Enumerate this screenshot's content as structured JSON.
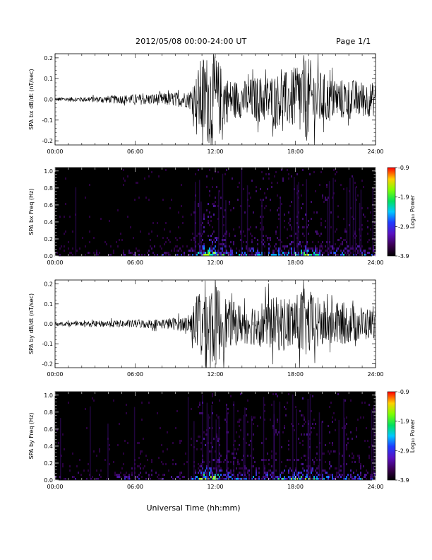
{
  "header": {
    "title": "2012/05/08  00:00-24:00 UT",
    "page": "Page 1/1"
  },
  "chart_data": [
    {
      "type": "line",
      "panel": "bx-waveform",
      "ylabel": "SPA bx dB/dt (nT/sec)",
      "x_ticks": [
        "00:00",
        "06:00",
        "12:00",
        "18:00",
        "24:00"
      ],
      "y_ticks": [
        "-0.2",
        "-0.1",
        "0.0",
        "0.1",
        "0.2"
      ],
      "ylim": [
        -0.22,
        0.22
      ],
      "xlim_hours": [
        0,
        24
      ],
      "series": [
        {
          "x_hours": [
            0,
            2,
            4,
            6,
            8,
            10,
            10.5,
            11,
            11.5,
            12,
            13,
            14,
            15,
            16,
            17,
            18,
            18.5,
            19,
            20,
            21,
            22,
            23,
            24
          ],
          "envelope": [
            0.01,
            0.012,
            0.018,
            0.025,
            0.03,
            0.04,
            0.1,
            0.22,
            0.22,
            0.22,
            0.1,
            0.09,
            0.11,
            0.12,
            0.13,
            0.15,
            0.22,
            0.2,
            0.13,
            0.1,
            0.1,
            0.09,
            0.08
          ]
        }
      ]
    },
    {
      "type": "heatmap",
      "panel": "bx-spectrogram",
      "ylabel": "SPA bx Freq (Hz)",
      "x_ticks": [
        "00:00",
        "06:00",
        "12:00",
        "18:00",
        "24:00"
      ],
      "y_ticks": [
        "0.0",
        "0.2",
        "0.4",
        "0.6",
        "0.8",
        "1.0"
      ],
      "ylim": [
        0,
        1.04
      ],
      "xlim_hours": [
        0,
        24
      ],
      "colorbar": {
        "label": "Log₁₀ Power",
        "ticks": [
          "-0.9",
          "-1.9",
          "-2.9",
          "-3.9"
        ],
        "range": [
          -3.9,
          -0.9
        ]
      },
      "activity_hours": [
        0,
        2,
        4,
        6,
        8,
        10,
        10.5,
        11,
        11.5,
        12,
        13,
        14,
        15,
        16,
        17,
        18,
        18.5,
        19,
        20,
        21,
        22,
        23,
        24
      ],
      "activity_level": [
        0.12,
        0.15,
        0.18,
        0.22,
        0.25,
        0.3,
        0.5,
        0.9,
        1.0,
        0.95,
        0.55,
        0.5,
        0.55,
        0.6,
        0.62,
        0.7,
        0.85,
        0.8,
        0.6,
        0.5,
        0.5,
        0.45,
        0.4
      ]
    },
    {
      "type": "line",
      "panel": "by-waveform",
      "ylabel": "SPA by dB/dt (nT/sec)",
      "x_ticks": [
        "00:00",
        "06:00",
        "12:00",
        "18:00",
        "24:00"
      ],
      "y_ticks": [
        "-0.2",
        "-0.1",
        "0.0",
        "0.1",
        "0.2"
      ],
      "ylim": [
        -0.22,
        0.22
      ],
      "xlim_hours": [
        0,
        24
      ],
      "series": [
        {
          "x_hours": [
            0,
            2,
            4,
            6,
            8,
            10,
            10.5,
            11,
            11.5,
            12,
            13,
            14,
            15,
            16,
            17,
            18,
            18.5,
            19,
            20,
            21,
            22,
            23,
            24
          ],
          "envelope": [
            0.01,
            0.012,
            0.018,
            0.02,
            0.025,
            0.04,
            0.12,
            0.22,
            0.22,
            0.22,
            0.12,
            0.1,
            0.11,
            0.13,
            0.14,
            0.14,
            0.18,
            0.17,
            0.12,
            0.11,
            0.1,
            0.09,
            0.07
          ]
        }
      ]
    },
    {
      "type": "heatmap",
      "panel": "by-spectrogram",
      "ylabel": "SPA by Freq (Hz)",
      "x_ticks": [
        "00:00",
        "06:00",
        "12:00",
        "18:00",
        "24:00"
      ],
      "y_ticks": [
        "0.0",
        "0.2",
        "0.4",
        "0.6",
        "0.8",
        "1.0"
      ],
      "ylim": [
        0,
        1.04
      ],
      "xlim_hours": [
        0,
        24
      ],
      "xlabel": "Universal Time (hh:mm)",
      "colorbar": {
        "label": "Log₁₀ Power",
        "ticks": [
          "-0.9",
          "-1.9",
          "-2.9",
          "-3.9"
        ],
        "range": [
          -3.9,
          -0.9
        ]
      },
      "activity_hours": [
        0,
        2,
        4,
        6,
        8,
        10,
        10.5,
        11,
        11.5,
        12,
        13,
        14,
        15,
        16,
        17,
        18,
        18.5,
        19,
        20,
        21,
        22,
        23,
        24
      ],
      "activity_level": [
        0.15,
        0.2,
        0.22,
        0.3,
        0.25,
        0.32,
        0.55,
        0.95,
        1.0,
        0.95,
        0.55,
        0.5,
        0.55,
        0.6,
        0.62,
        0.7,
        0.85,
        0.8,
        0.62,
        0.52,
        0.5,
        0.45,
        0.4
      ]
    }
  ]
}
